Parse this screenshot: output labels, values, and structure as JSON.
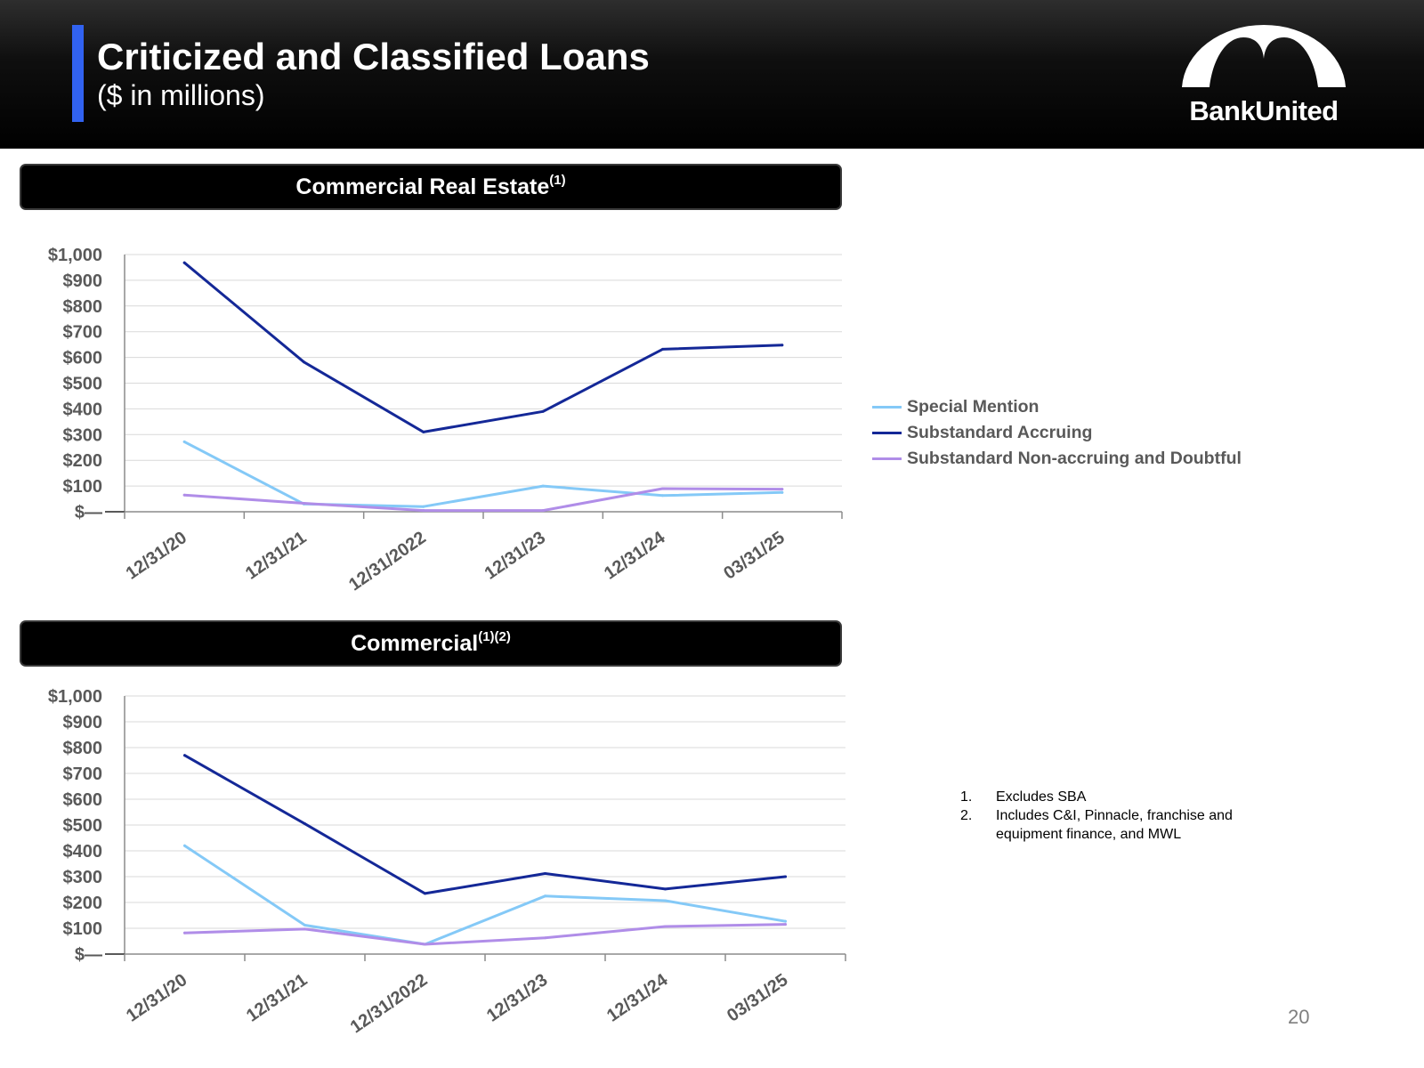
{
  "header": {
    "title": "Criticized and Classified Loans",
    "subtitle": "($ in millions)",
    "accent_color": "#3162f0",
    "logo_text": "BankUnited"
  },
  "sections": [
    {
      "label": "Commercial Real Estate",
      "sup": "(1)"
    },
    {
      "label": "Commercial",
      "sup": "(1)(2)"
    }
  ],
  "legend": [
    {
      "label": "Special Mention",
      "color": "#84c9f7"
    },
    {
      "label": "Substandard Accruing",
      "color": "#142897"
    },
    {
      "label": "Substandard Non-accruing and Doubtful",
      "color": "#b08de8"
    }
  ],
  "footnotes": [
    {
      "num": "1.",
      "text": "Excludes SBA"
    },
    {
      "num": "2.",
      "text": "Includes C&I, Pinnacle, franchise and equipment finance, and MWL"
    }
  ],
  "page_number": "20",
  "chart_data": [
    {
      "type": "line",
      "title": "Commercial Real Estate(1)",
      "categories": [
        "12/31/20",
        "12/31/21",
        "12/31/2022",
        "12/31/23",
        "12/31/24",
        "03/31/25"
      ],
      "y_ticks": [
        "$—",
        "$100",
        "$200",
        "$300",
        "$400",
        "$500",
        "$600",
        "$700",
        "$800",
        "$900",
        "$1,000"
      ],
      "ylim": [
        0,
        1000
      ],
      "grid": true,
      "legend_position": "right",
      "series": [
        {
          "name": "Special Mention",
          "color": "#84c9f7",
          "values": [
            272,
            30,
            20,
            100,
            63,
            75
          ]
        },
        {
          "name": "Substandard Accruing",
          "color": "#142897",
          "values": [
            968,
            582,
            310,
            390,
            632,
            648
          ]
        },
        {
          "name": "Substandard Non-accruing and Doubtful",
          "color": "#b08de8",
          "values": [
            65,
            33,
            5,
            5,
            90,
            88
          ]
        }
      ]
    },
    {
      "type": "line",
      "title": "Commercial(1)(2)",
      "categories": [
        "12/31/20",
        "12/31/21",
        "12/31/2022",
        "12/31/23",
        "12/31/24",
        "03/31/25"
      ],
      "y_ticks": [
        "$—",
        "$100",
        "$200",
        "$300",
        "$400",
        "$500",
        "$600",
        "$700",
        "$800",
        "$900",
        "$1,000"
      ],
      "ylim": [
        0,
        1000
      ],
      "grid": true,
      "legend_position": "right",
      "series": [
        {
          "name": "Special Mention",
          "color": "#84c9f7",
          "values": [
            420,
            112,
            38,
            225,
            207,
            127
          ]
        },
        {
          "name": "Substandard Accruing",
          "color": "#142897",
          "values": [
            770,
            505,
            235,
            312,
            252,
            300
          ]
        },
        {
          "name": "Substandard Non-accruing and Doubtful",
          "color": "#b08de8",
          "values": [
            82,
            97,
            38,
            63,
            107,
            115
          ]
        }
      ]
    }
  ]
}
